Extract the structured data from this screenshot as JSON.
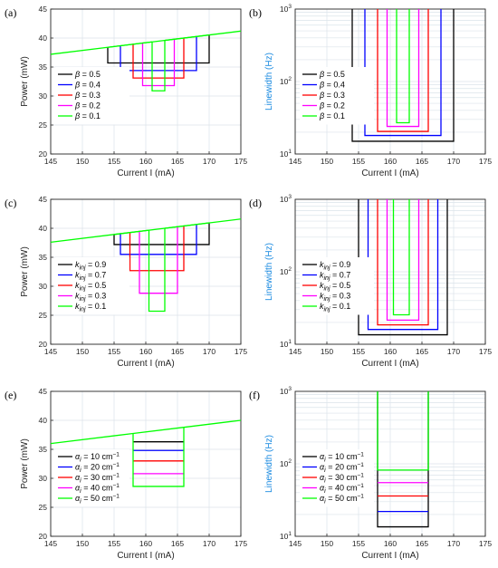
{
  "colors": {
    "black": "#000000",
    "blue": "#0000ff",
    "red": "#ff0000",
    "magenta": "#ff00ff",
    "green": "#00ff00",
    "grid": "#dbe3ea",
    "log_axis_label": "#1a8ae0"
  },
  "chart_data": [
    {
      "panel": "(a)",
      "type": "line",
      "xlabel": "Current I (mA)",
      "ylabel": "Power (mW)",
      "xlim": [
        145,
        175
      ],
      "ylim": [
        20,
        45
      ],
      "xticks": [
        "145",
        "150",
        "155",
        "160",
        "165",
        "170",
        "175"
      ],
      "yticks": [
        "20",
        "25",
        "30",
        "35",
        "40",
        "45"
      ],
      "grid": true,
      "legend_placement": "left",
      "series": [
        {
          "legend": {
            "sym": "β",
            "sub": "",
            "sup": "",
            "text": " = 0.5"
          },
          "color": "black",
          "shape": "well",
          "x1": 154,
          "x2": 170,
          "yb": 35.7
        },
        {
          "legend": {
            "sym": "β",
            "sub": "",
            "sup": "",
            "text": " = 0.4"
          },
          "color": "blue",
          "shape": "well",
          "x1": 156,
          "x2": 168,
          "yb": 34.4
        },
        {
          "legend": {
            "sym": "β",
            "sub": "",
            "sup": "",
            "text": " = 0.3"
          },
          "color": "red",
          "shape": "well",
          "x1": 158,
          "x2": 166,
          "yb": 33.1
        },
        {
          "legend": {
            "sym": "β",
            "sub": "",
            "sup": "",
            "text": " = 0.2"
          },
          "color": "magenta",
          "shape": "well",
          "x1": 159.5,
          "x2": 164.5,
          "yb": 31.8
        },
        {
          "legend": {
            "sym": "β",
            "sub": "",
            "sup": "",
            "text": " = 0.1"
          },
          "color": "green",
          "shape": "well",
          "x1": 161,
          "x2": 163,
          "yb": 30.9
        }
      ],
      "base_line": {
        "color": "green",
        "x": [
          145,
          175
        ],
        "y": [
          37.2,
          41.2
        ]
      }
    },
    {
      "panel": "(b)",
      "type": "line",
      "xlabel": "Current I (mA)",
      "ylabel": "Linewidth (Hz)",
      "yscale": "log",
      "xlim": [
        145,
        175
      ],
      "ylim": [
        10,
        1000
      ],
      "xticks": [
        "145",
        "150",
        "155",
        "160",
        "165",
        "170",
        "175"
      ],
      "grid": true,
      "legend_placement": "left",
      "series": [
        {
          "legend": {
            "sym": "β",
            "sub": "",
            "sup": "",
            "text": " = 0.5"
          },
          "color": "black",
          "shape": "u",
          "x1": 154,
          "x2": 170,
          "yb": 15
        },
        {
          "legend": {
            "sym": "β",
            "sub": "",
            "sup": "",
            "text": " = 0.4"
          },
          "color": "blue",
          "shape": "u",
          "x1": 156,
          "x2": 168,
          "yb": 18
        },
        {
          "legend": {
            "sym": "β",
            "sub": "",
            "sup": "",
            "text": " = 0.3"
          },
          "color": "red",
          "shape": "u",
          "x1": 158,
          "x2": 166,
          "yb": 20.5
        },
        {
          "legend": {
            "sym": "β",
            "sub": "",
            "sup": "",
            "text": " = 0.2"
          },
          "color": "magenta",
          "shape": "u",
          "x1": 159.5,
          "x2": 164.5,
          "yb": 24
        },
        {
          "legend": {
            "sym": "β",
            "sub": "",
            "sup": "",
            "text": " = 0.1"
          },
          "color": "green",
          "shape": "u",
          "x1": 161,
          "x2": 163,
          "yb": 27
        }
      ]
    },
    {
      "panel": "(c)",
      "type": "line",
      "xlabel": "Current I (mA)",
      "ylabel": "Power (mW)",
      "xlim": [
        145,
        175
      ],
      "ylim": [
        20,
        45
      ],
      "xticks": [
        "145",
        "150",
        "155",
        "160",
        "165",
        "170",
        "175"
      ],
      "yticks": [
        "20",
        "25",
        "30",
        "35",
        "40",
        "45"
      ],
      "grid": true,
      "legend_placement": "left",
      "series": [
        {
          "legend": {
            "sym": "k",
            "sub": "inj",
            "sup": "",
            "text": " = 0.9"
          },
          "color": "black",
          "shape": "well",
          "x1": 155,
          "x2": 170,
          "yb": 37.2
        },
        {
          "legend": {
            "sym": "k",
            "sub": "inj",
            "sup": "",
            "text": " = 0.7"
          },
          "color": "blue",
          "shape": "well",
          "x1": 156,
          "x2": 168,
          "yb": 35.5
        },
        {
          "legend": {
            "sym": "k",
            "sub": "inj",
            "sup": "",
            "text": " = 0.5"
          },
          "color": "red",
          "shape": "well",
          "x1": 157.5,
          "x2": 166,
          "yb": 32.7
        },
        {
          "legend": {
            "sym": "k",
            "sub": "inj",
            "sup": "",
            "text": " = 0.3"
          },
          "color": "magenta",
          "shape": "well",
          "x1": 159,
          "x2": 165,
          "yb": 28.8
        },
        {
          "legend": {
            "sym": "k",
            "sub": "inj",
            "sup": "",
            "text": " = 0.1"
          },
          "color": "green",
          "shape": "well",
          "x1": 160.5,
          "x2": 163,
          "yb": 25.7
        }
      ],
      "base_line": {
        "color": "green",
        "x": [
          145,
          175
        ],
        "y": [
          37.6,
          41.6
        ]
      }
    },
    {
      "panel": "(d)",
      "type": "line",
      "xlabel": "Current I (mA)",
      "ylabel": "Linewidth (Hz)",
      "yscale": "log",
      "xlim": [
        145,
        175
      ],
      "ylim": [
        10,
        1000
      ],
      "xticks": [
        "145",
        "150",
        "155",
        "160",
        "165",
        "170",
        "175"
      ],
      "grid": true,
      "legend_placement": "left",
      "series": [
        {
          "legend": {
            "sym": "k",
            "sub": "inj",
            "sup": "",
            "text": " = 0.9"
          },
          "color": "black",
          "shape": "u",
          "x1": 155,
          "x2": 169,
          "yb": 13.5
        },
        {
          "legend": {
            "sym": "k",
            "sub": "inj",
            "sup": "",
            "text": " = 0.7"
          },
          "color": "blue",
          "shape": "u",
          "x1": 156.5,
          "x2": 167.5,
          "yb": 16
        },
        {
          "legend": {
            "sym": "k",
            "sub": "inj",
            "sup": "",
            "text": " = 0.5"
          },
          "color": "red",
          "shape": "u",
          "x1": 158,
          "x2": 166,
          "yb": 18.5
        },
        {
          "legend": {
            "sym": "k",
            "sub": "inj",
            "sup": "",
            "text": " = 0.3"
          },
          "color": "magenta",
          "shape": "u",
          "x1": 159.5,
          "x2": 164.5,
          "yb": 21.5
        },
        {
          "legend": {
            "sym": "k",
            "sub": "inj",
            "sup": "",
            "text": " = 0.1"
          },
          "color": "green",
          "shape": "u",
          "x1": 160.5,
          "x2": 163,
          "yb": 25.5
        }
      ]
    },
    {
      "panel": "(e)",
      "type": "line",
      "xlabel": "Current I (mA)",
      "ylabel": "Power (mW)",
      "xlim": [
        145,
        175
      ],
      "ylim": [
        20,
        45
      ],
      "xticks": [
        "145",
        "150",
        "155",
        "160",
        "165",
        "170",
        "175"
      ],
      "yticks": [
        "20",
        "25",
        "30",
        "35",
        "40",
        "45"
      ],
      "grid": true,
      "legend_placement": "left",
      "series": [
        {
          "legend": {
            "sym": "α",
            "sub": "i",
            "sup": "−1",
            "text": " = 10 cm"
          },
          "color": "black",
          "shape": "level",
          "x1": 158,
          "x2": 166,
          "yb": 36.3
        },
        {
          "legend": {
            "sym": "α",
            "sub": "i",
            "sup": "−1",
            "text": " = 20 cm"
          },
          "color": "blue",
          "shape": "level",
          "x1": 158,
          "x2": 166,
          "yb": 34.8
        },
        {
          "legend": {
            "sym": "α",
            "sub": "i",
            "sup": "−1",
            "text": " = 30 cm"
          },
          "color": "red",
          "shape": "level",
          "x1": 158,
          "x2": 166,
          "yb": 33.0
        },
        {
          "legend": {
            "sym": "α",
            "sub": "i",
            "sup": "−1",
            "text": " = 40 cm"
          },
          "color": "magenta",
          "shape": "level",
          "x1": 158,
          "x2": 166,
          "yb": 30.8
        },
        {
          "legend": {
            "sym": "α",
            "sub": "i",
            "sup": "−1",
            "text": " = 50 cm"
          },
          "color": "green",
          "shape": "well",
          "x1": 158,
          "x2": 166,
          "yb": 28.6
        }
      ],
      "base_line": {
        "color": "green",
        "x": [
          145,
          175
        ],
        "y": [
          36.0,
          40.0
        ]
      }
    },
    {
      "panel": "(f)",
      "type": "line",
      "xlabel": "Current I (mA)",
      "ylabel": "Linewidth (Hz)",
      "yscale": "log",
      "xlim": [
        145,
        175
      ],
      "ylim": [
        10,
        1000
      ],
      "xticks": [
        "145",
        "150",
        "155",
        "160",
        "165",
        "170",
        "175"
      ],
      "grid": true,
      "legend_placement": "left",
      "series": [
        {
          "legend": {
            "sym": "α",
            "sub": "i",
            "sup": "−1",
            "text": " = 10 cm"
          },
          "color": "black",
          "shape": "u",
          "x1": 158,
          "x2": 166,
          "yb": 13.5
        },
        {
          "legend": {
            "sym": "α",
            "sub": "i",
            "sup": "−1",
            "text": " = 20 cm"
          },
          "color": "blue",
          "shape": "level",
          "x1": 158,
          "x2": 166,
          "yb": 22
        },
        {
          "legend": {
            "sym": "α",
            "sub": "i",
            "sup": "−1",
            "text": " = 30 cm"
          },
          "color": "red",
          "shape": "level",
          "x1": 158,
          "x2": 166,
          "yb": 36
        },
        {
          "legend": {
            "sym": "α",
            "sub": "i",
            "sup": "−1",
            "text": " = 40 cm"
          },
          "color": "magenta",
          "shape": "level",
          "x1": 158,
          "x2": 166,
          "yb": 55
        },
        {
          "legend": {
            "sym": "α",
            "sub": "i",
            "sup": "−1",
            "text": " = 50 cm"
          },
          "color": "green",
          "shape": "u",
          "x1": 158,
          "x2": 166,
          "yb": 82
        }
      ]
    }
  ]
}
